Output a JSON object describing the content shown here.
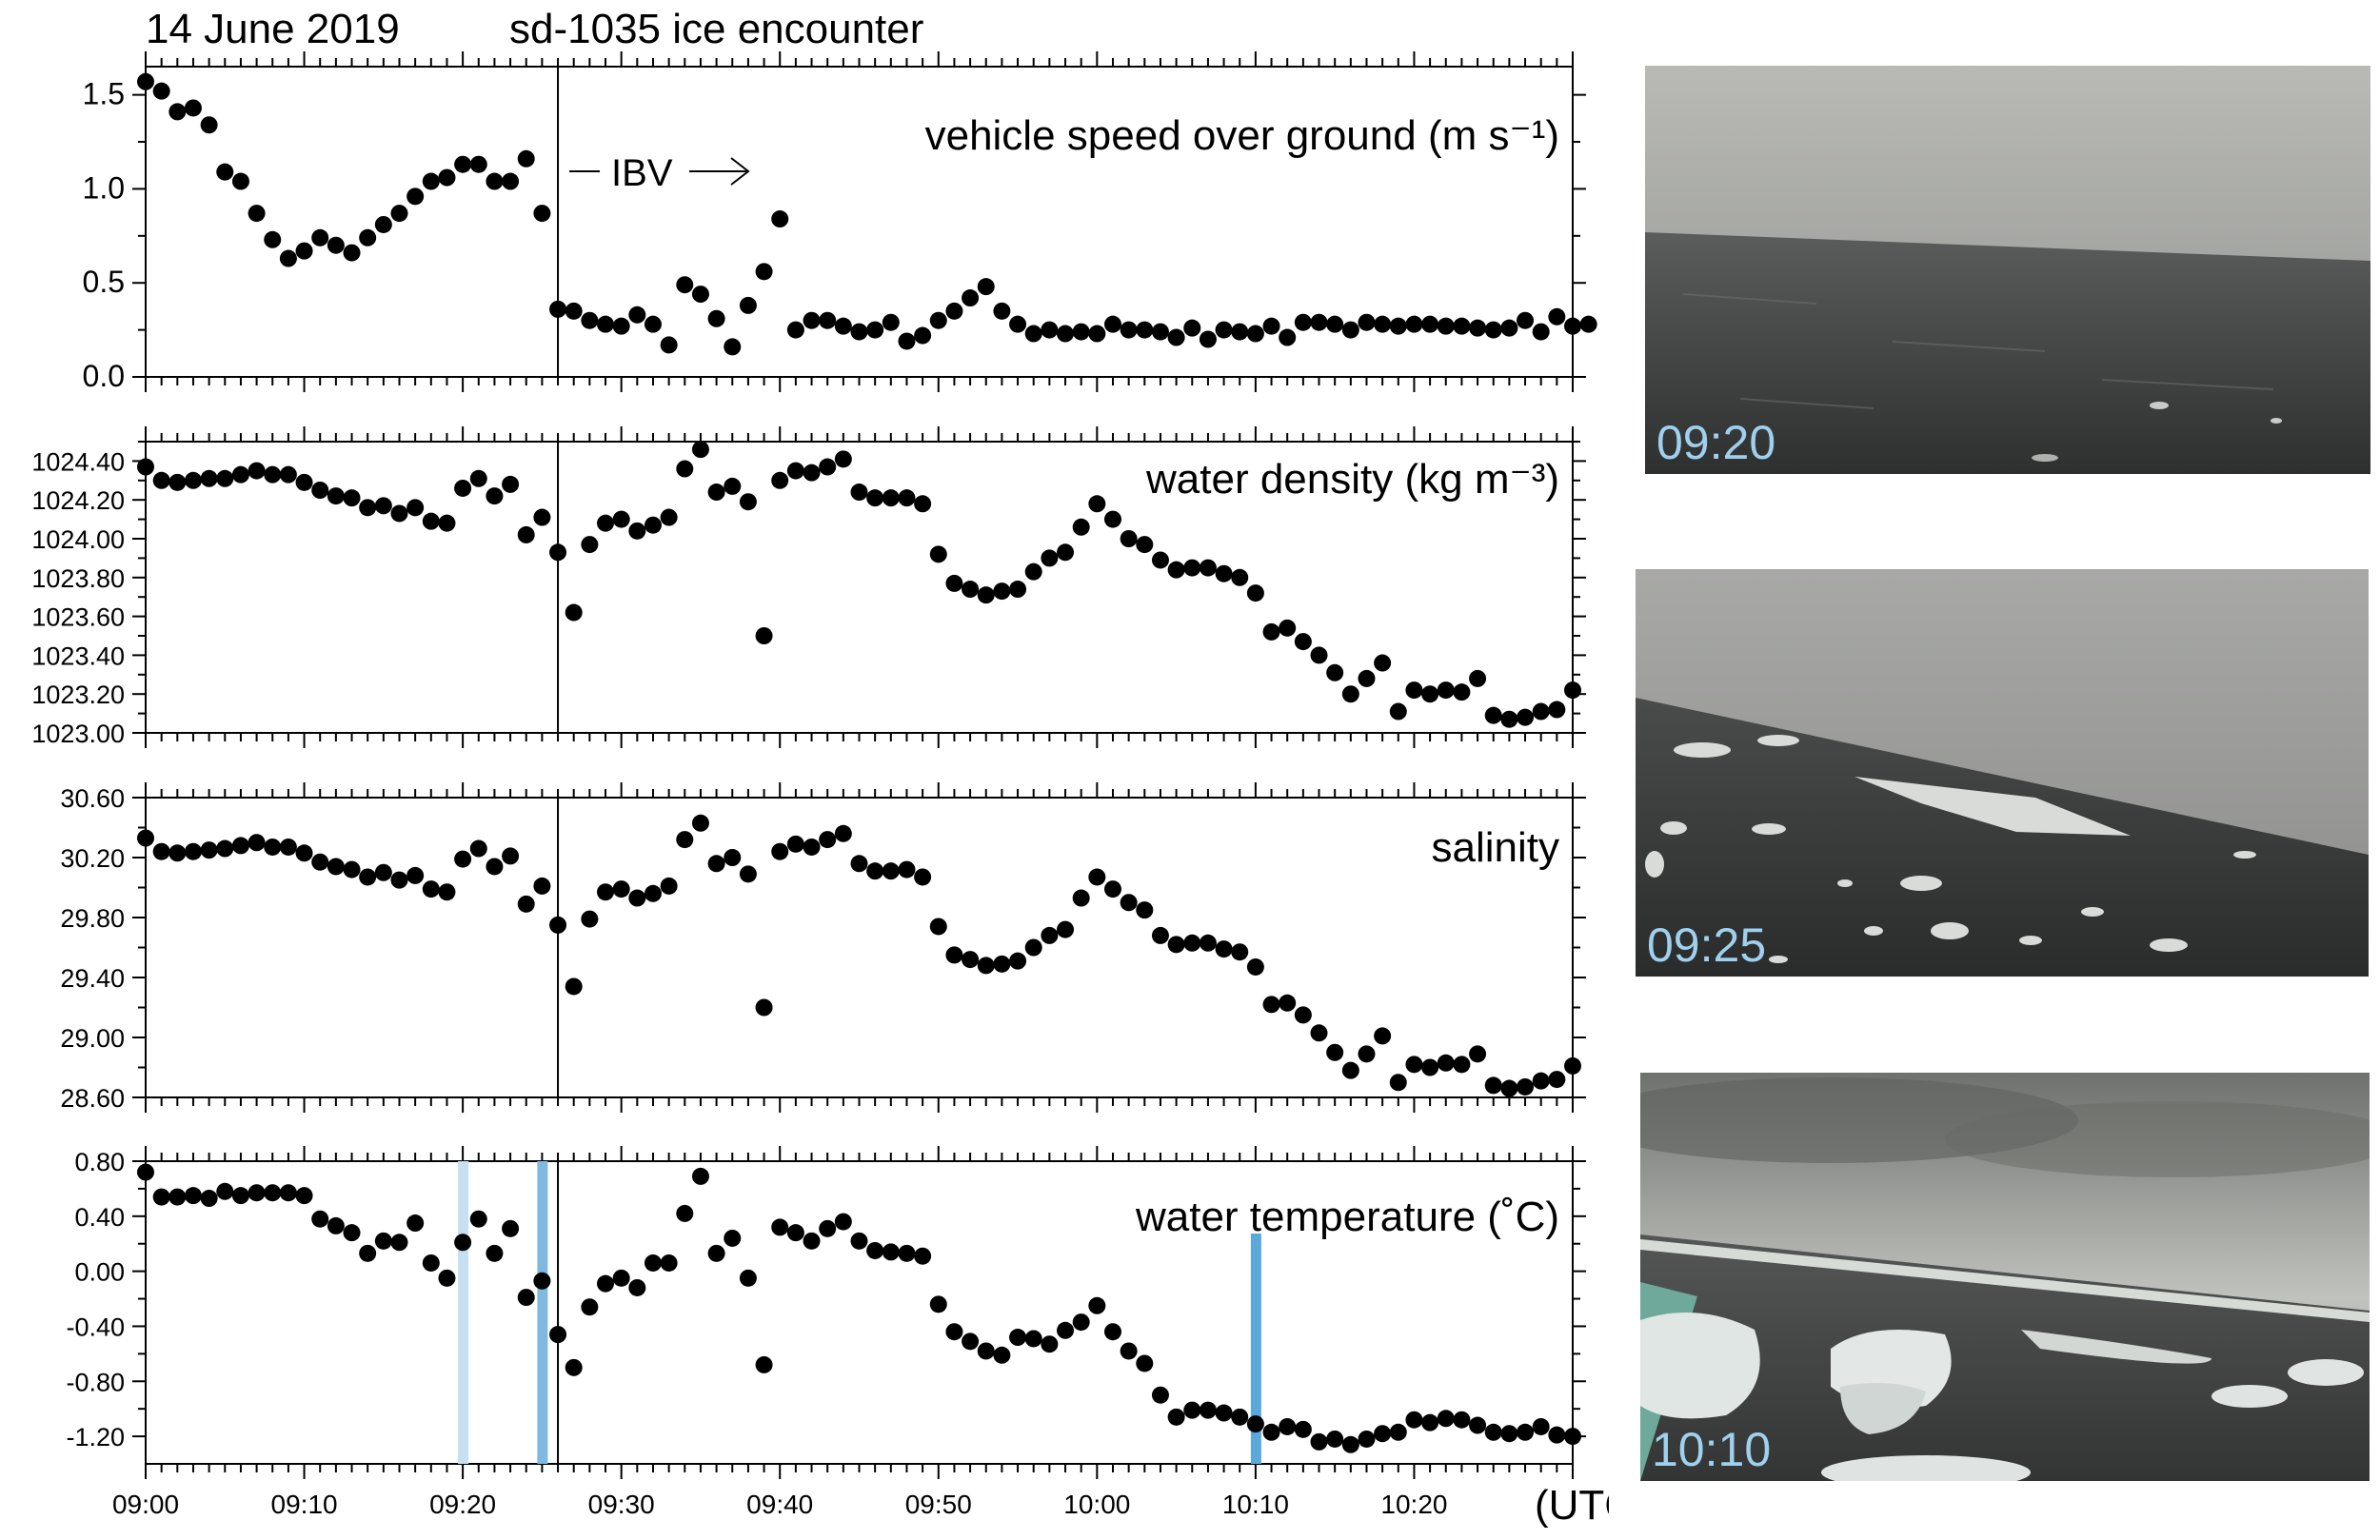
{
  "figure": {
    "date": "14 June 2019",
    "title": "sd-1035 ice encounter",
    "x_unit": "(UTC)",
    "x_ticks": [
      "09:00",
      "09:10",
      "09:20",
      "09:30",
      "09:40",
      "09:50",
      "10:00",
      "10:10",
      "10:20"
    ],
    "ibv_label": "IBV",
    "ibv_time_minutes": 26
  },
  "colors": {
    "marker": "#000000",
    "band_0920": "#c6e0f2",
    "band_0925": "#7fb9e0",
    "band_1010": "#5aa8dc",
    "photo_label": "#9fd0ee"
  },
  "photos": [
    {
      "label": "09:20",
      "scene": "open-water"
    },
    {
      "label": "09:25",
      "scene": "scattered-ice"
    },
    {
      "label": "10:10",
      "scene": "ice-floes"
    }
  ],
  "chart_data": [
    {
      "type": "scatter",
      "title": "vehicle speed over ground (m s⁻¹)",
      "ylim": [
        0,
        1.65
      ],
      "yticks": [
        "0.0",
        "0.5",
        "1.0",
        "1.5"
      ],
      "ytick_values": [
        0,
        0.5,
        1.0,
        1.5
      ],
      "series": [
        {
          "x_start": 0,
          "x_step": 1,
          "values": [
            1.57,
            1.52,
            1.41,
            1.43,
            1.34,
            1.09,
            1.04,
            0.87,
            0.73,
            0.63,
            0.67,
            0.74,
            0.7,
            0.66,
            0.74,
            0.81,
            0.87,
            0.96,
            1.04,
            1.06,
            1.13,
            1.13,
            1.04,
            1.04,
            1.16,
            0.87,
            0.36,
            0.35,
            0.3,
            0.28,
            0.27,
            0.33,
            0.28,
            0.17,
            0.49,
            0.44,
            0.31,
            0.16,
            0.38,
            0.56,
            0.84,
            0.25,
            0.3,
            0.3,
            0.27,
            0.24,
            0.25,
            0.29,
            0.19,
            0.22,
            0.3,
            0.35,
            0.42,
            0.48,
            0.35,
            0.28,
            0.23,
            0.25,
            0.23,
            0.24,
            0.23,
            0.28,
            0.25,
            0.25,
            0.24,
            0.21,
            0.26,
            0.2,
            0.25,
            0.24,
            0.23,
            0.27,
            0.21,
            0.29,
            0.29,
            0.28,
            0.25,
            0.29,
            0.28,
            0.27,
            0.28,
            0.28,
            0.27,
            0.27,
            0.26,
            0.25,
            0.26,
            0.3,
            0.24,
            0.32,
            0.27,
            0.28
          ]
        }
      ]
    },
    {
      "type": "scatter",
      "title": "water density (kg m⁻³)",
      "ylim": [
        1023.0,
        1024.5
      ],
      "yticks": [
        "1023.00",
        "1023.20",
        "1023.40",
        "1023.60",
        "1023.80",
        "1024.00",
        "1024.20",
        "1024.40"
      ],
      "ytick_values": [
        1023.0,
        1023.2,
        1023.4,
        1023.6,
        1023.8,
        1024.0,
        1024.2,
        1024.4
      ],
      "series": [
        {
          "x_start": 0,
          "x_step": 1,
          "values": [
            1024.37,
            1024.3,
            1024.29,
            1024.3,
            1024.31,
            1024.31,
            1024.33,
            1024.35,
            1024.33,
            1024.33,
            1024.29,
            1024.25,
            1024.22,
            1024.21,
            1024.16,
            1024.17,
            1024.13,
            1024.16,
            1024.09,
            1024.08,
            1024.26,
            1024.31,
            1024.22,
            1024.28,
            1024.02,
            1024.11,
            1023.93,
            1023.62,
            1023.97,
            1024.08,
            1024.1,
            1024.04,
            1024.07,
            1024.11,
            1024.36,
            1024.46,
            1024.24,
            1024.27,
            1024.19,
            1023.5,
            1024.3,
            1024.35,
            1024.34,
            1024.37,
            1024.41,
            1024.24,
            1024.21,
            1024.21,
            1024.21,
            1024.18,
            1023.92,
            1023.77,
            1023.74,
            1023.71,
            1023.73,
            1023.74,
            1023.83,
            1023.9,
            1023.93,
            1024.06,
            1024.18,
            1024.1,
            1024.0,
            1023.97,
            1023.89,
            1023.84,
            1023.85,
            1023.85,
            1023.82,
            1023.8,
            1023.72,
            1023.52,
            1023.54,
            1023.47,
            1023.4,
            1023.31,
            1023.2,
            1023.28,
            1023.36,
            1023.11,
            1023.22,
            1023.2,
            1023.22,
            1023.21,
            1023.28,
            1023.09,
            1023.07,
            1023.08,
            1023.11,
            1023.12,
            1023.22
          ]
        }
      ]
    },
    {
      "type": "scatter",
      "title": "salinity",
      "ylim": [
        28.6,
        30.6
      ],
      "yticks": [
        "28.60",
        "29.00",
        "29.40",
        "29.80",
        "30.20",
        "30.60"
      ],
      "ytick_values": [
        28.6,
        29.0,
        29.4,
        29.8,
        30.2,
        30.6
      ],
      "series": [
        {
          "x_start": 0,
          "x_step": 1,
          "values": [
            30.33,
            30.24,
            30.23,
            30.24,
            30.25,
            30.26,
            30.28,
            30.3,
            30.27,
            30.27,
            30.23,
            30.17,
            30.14,
            30.12,
            30.07,
            30.1,
            30.05,
            30.08,
            29.99,
            29.97,
            30.19,
            30.26,
            30.14,
            30.21,
            29.89,
            30.01,
            29.75,
            29.34,
            29.79,
            29.97,
            29.99,
            29.93,
            29.96,
            30.01,
            30.32,
            30.43,
            30.16,
            30.2,
            30.09,
            29.2,
            30.24,
            30.29,
            30.27,
            30.32,
            30.36,
            30.16,
            30.11,
            30.11,
            30.12,
            30.07,
            29.74,
            29.55,
            29.52,
            29.48,
            29.49,
            29.51,
            29.6,
            29.68,
            29.72,
            29.93,
            30.07,
            29.99,
            29.9,
            29.85,
            29.68,
            29.62,
            29.63,
            29.63,
            29.59,
            29.57,
            29.47,
            29.22,
            29.23,
            29.15,
            29.03,
            28.9,
            28.78,
            28.89,
            29.01,
            28.7,
            28.82,
            28.8,
            28.83,
            28.82,
            28.89,
            28.68,
            28.66,
            28.67,
            28.71,
            28.72,
            28.81
          ]
        }
      ]
    },
    {
      "type": "scatter",
      "title": "water temperature (˚C)",
      "ylim": [
        -1.4,
        0.8
      ],
      "yticks": [
        "-1.20",
        "-0.80",
        "-0.40",
        "0.00",
        "0.40",
        "0.80"
      ],
      "ytick_values": [
        -1.2,
        -0.8,
        -0.4,
        0.0,
        0.4,
        0.8
      ],
      "series": [
        {
          "x_start": 0,
          "x_step": 1,
          "values": [
            0.72,
            0.54,
            0.54,
            0.55,
            0.53,
            0.58,
            0.55,
            0.57,
            0.57,
            0.57,
            0.55,
            0.38,
            0.33,
            0.28,
            0.13,
            0.22,
            0.21,
            0.35,
            0.06,
            -0.05,
            0.21,
            0.38,
            0.13,
            0.31,
            -0.19,
            -0.07,
            -0.46,
            -0.7,
            -0.26,
            -0.09,
            -0.05,
            -0.12,
            0.06,
            0.06,
            0.42,
            0.69,
            0.13,
            0.24,
            -0.05,
            -0.68,
            0.32,
            0.28,
            0.22,
            0.31,
            0.36,
            0.22,
            0.15,
            0.14,
            0.13,
            0.11,
            -0.24,
            -0.44,
            -0.51,
            -0.58,
            -0.61,
            -0.48,
            -0.49,
            -0.53,
            -0.43,
            -0.37,
            -0.25,
            -0.44,
            -0.58,
            -0.67,
            -0.9,
            -1.06,
            -1.01,
            -1.01,
            -1.03,
            -1.06,
            -1.11,
            -1.17,
            -1.13,
            -1.15,
            -1.24,
            -1.22,
            -1.26,
            -1.22,
            -1.18,
            -1.17,
            -1.08,
            -1.1,
            -1.07,
            -1.08,
            -1.12,
            -1.17,
            -1.18,
            -1.17,
            -1.13,
            -1.19,
            -1.2
          ]
        }
      ],
      "highlight_times": [
        "09:20",
        "09:25",
        "10:10"
      ],
      "highlight_minutes": [
        20,
        25,
        70
      ]
    }
  ]
}
